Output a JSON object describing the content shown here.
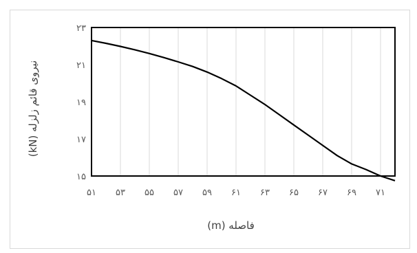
{
  "chart_data": {
    "type": "line",
    "xlabel": "فاصله (m)",
    "ylabel": "نیروی قائم زلزله (kN)",
    "x_tick_labels": [
      "۵۱",
      "۵۳",
      "۵۵",
      "۵۷",
      "۵۹",
      "۶۱",
      "۶۳",
      "۶۵",
      "۶۷",
      "۶۹",
      "۷۱"
    ],
    "y_tick_labels": [
      "۱۵",
      "۱۷",
      "۱۹",
      "۲۱",
      "۲۳"
    ],
    "x_ticks": [
      51,
      53,
      55,
      57,
      59,
      61,
      63,
      65,
      67,
      69,
      71
    ],
    "y_ticks": [
      15,
      17,
      19,
      21,
      23
    ],
    "xlim": [
      51,
      72
    ],
    "ylim": [
      15,
      23
    ],
    "grid": "vertical",
    "series": [
      {
        "color": "#000000",
        "x": [
          51,
          52,
          53,
          54,
          55,
          56,
          57,
          58,
          59,
          60,
          61,
          62,
          63,
          64,
          65,
          66,
          67,
          68,
          69,
          70,
          71,
          72
        ],
        "y": [
          22.3,
          22.15,
          21.98,
          21.8,
          21.6,
          21.38,
          21.15,
          20.9,
          20.6,
          20.25,
          19.85,
          19.35,
          18.85,
          18.3,
          17.75,
          17.2,
          16.65,
          16.1,
          15.65,
          15.35,
          15.0,
          14.75
        ]
      }
    ]
  }
}
